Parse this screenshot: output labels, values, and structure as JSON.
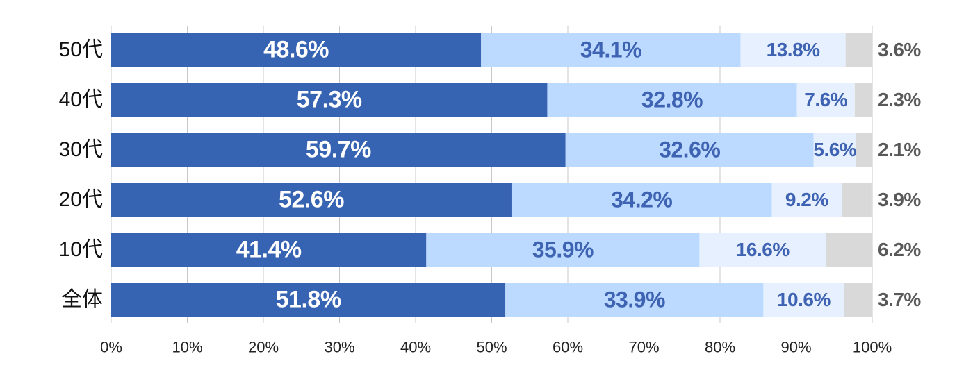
{
  "chart_data": {
    "type": "bar",
    "orientation": "horizontal",
    "stacked": "percent",
    "title": "",
    "xlabel": "",
    "ylabel": "",
    "xlim": [
      0,
      100
    ],
    "x_ticks": [
      "0%",
      "10%",
      "20%",
      "30%",
      "40%",
      "50%",
      "60%",
      "70%",
      "80%",
      "90%",
      "100%"
    ],
    "grid": "vertical",
    "legend": "none",
    "categories": [
      "50代",
      "40代",
      "30代",
      "20代",
      "10代",
      "全体"
    ],
    "series": [
      {
        "values": [
          48.6,
          57.3,
          59.7,
          52.6,
          41.4,
          51.8
        ],
        "labels": [
          "48.6%",
          "57.3%",
          "59.7%",
          "52.6%",
          "41.4%",
          "51.8%"
        ],
        "color": "#3763b3",
        "label_color": "#ffffff"
      },
      {
        "values": [
          34.1,
          32.8,
          32.6,
          34.2,
          35.9,
          33.9
        ],
        "labels": [
          "34.1%",
          "32.8%",
          "32.6%",
          "34.2%",
          "35.9%",
          "33.9%"
        ],
        "color": "#bcdaff",
        "label_color": "#3e63b2"
      },
      {
        "values": [
          13.8,
          7.6,
          5.6,
          9.2,
          16.6,
          10.6
        ],
        "labels": [
          "13.8%",
          "7.6%",
          "5.6%",
          "9.2%",
          "16.6%",
          "10.6%"
        ],
        "color": "#e7f0ff",
        "label_color": "#3e63b2"
      },
      {
        "values": [
          3.6,
          2.3,
          2.1,
          3.9,
          6.2,
          3.7
        ],
        "labels": [
          "3.6%",
          "2.3%",
          "2.1%",
          "3.9%",
          "6.2%",
          "3.7%"
        ],
        "color": "#d9d9d9",
        "label_color": "#595959"
      }
    ]
  }
}
